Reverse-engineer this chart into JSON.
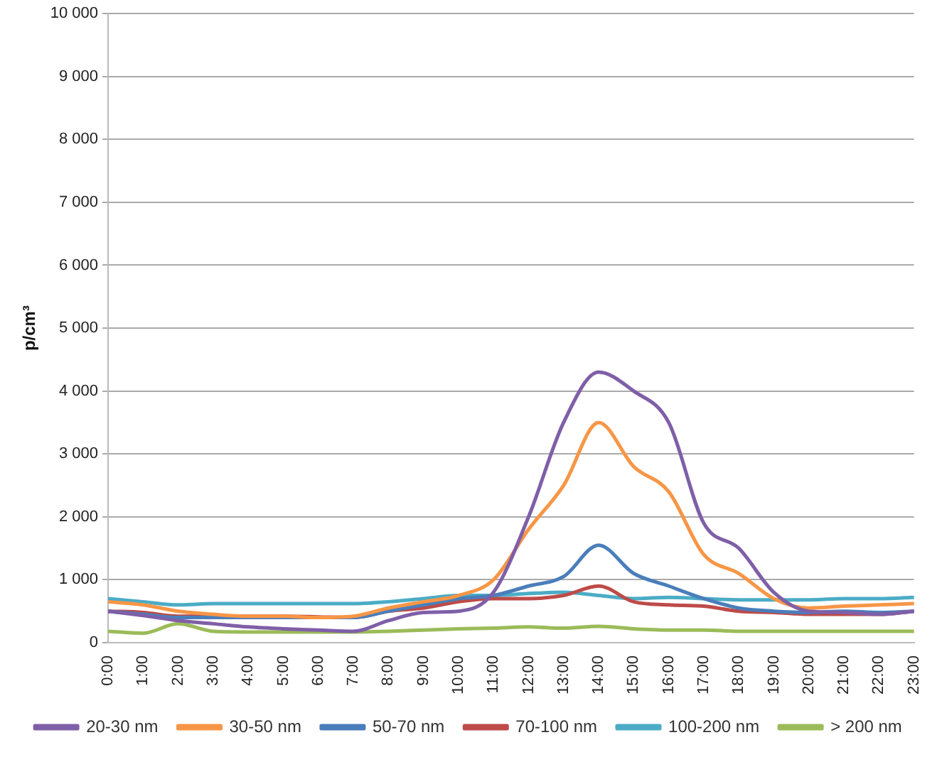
{
  "chart_data": {
    "type": "line",
    "ylabel": "p/cm³",
    "categories": [
      "0:00",
      "1:00",
      "2:00",
      "3:00",
      "4:00",
      "5:00",
      "6:00",
      "7:00",
      "8:00",
      "9:00",
      "10:00",
      "11:00",
      "12:00",
      "13:00",
      "14:00",
      "15:00",
      "16:00",
      "17:00",
      "18:00",
      "19:00",
      "20:00",
      "21:00",
      "22:00",
      "23:00"
    ],
    "series": [
      {
        "name": "20-30 nm",
        "color": "#7f5fa8",
        "values": [
          500,
          430,
          350,
          300,
          250,
          220,
          200,
          180,
          350,
          480,
          500,
          800,
          2000,
          3500,
          4300,
          4000,
          3500,
          1900,
          1500,
          800,
          500,
          480,
          450,
          500
        ]
      },
      {
        "name": "30-50 nm",
        "color": "#f79646",
        "values": [
          650,
          600,
          500,
          450,
          420,
          420,
          400,
          420,
          550,
          650,
          750,
          1000,
          1800,
          2500,
          3500,
          2800,
          2400,
          1400,
          1100,
          700,
          550,
          580,
          600,
          620
        ]
      },
      {
        "name": "50-70 nm",
        "color": "#4a7ebb",
        "values": [
          500,
          450,
          400,
          400,
          400,
          400,
          400,
          400,
          500,
          600,
          700,
          750,
          900,
          1050,
          1550,
          1100,
          900,
          700,
          550,
          500,
          480,
          500,
          480,
          500
        ]
      },
      {
        "name": "70-100 nm",
        "color": "#be4b48",
        "values": [
          500,
          480,
          420,
          420,
          420,
          420,
          410,
          400,
          500,
          550,
          650,
          700,
          700,
          750,
          900,
          650,
          600,
          580,
          500,
          480,
          450,
          450,
          450,
          500
        ]
      },
      {
        "name": "100-200 nm",
        "color": "#4bacc6",
        "values": [
          700,
          650,
          600,
          620,
          620,
          620,
          620,
          620,
          650,
          700,
          750,
          750,
          780,
          800,
          750,
          700,
          720,
          700,
          680,
          680,
          680,
          700,
          700,
          720
        ]
      },
      {
        "name": "> 200 nm",
        "color": "#9bbb59",
        "values": [
          180,
          150,
          300,
          180,
          170,
          170,
          170,
          170,
          180,
          200,
          220,
          230,
          250,
          230,
          260,
          220,
          200,
          200,
          180,
          180,
          180,
          180,
          180,
          180
        ]
      }
    ],
    "ylim": [
      0,
      10000
    ],
    "yticks": [
      0,
      {
        "value": 1000,
        "label": "1 000"
      },
      {
        "value": 2000,
        "label": "2 000"
      },
      {
        "value": 3000,
        "label": "3 000"
      },
      {
        "value": 4000,
        "label": "4 000"
      },
      {
        "value": 5000,
        "label": "5 000"
      },
      {
        "value": 6000,
        "label": "6 000"
      },
      {
        "value": 7000,
        "label": "7 000"
      },
      {
        "value": 8000,
        "label": "8 000"
      },
      {
        "value": 9000,
        "label": "9 000"
      },
      {
        "value": 10000,
        "label": "10 000"
      }
    ],
    "grid": "y",
    "legend": "bottom",
    "marker": "none",
    "line_style": "solid"
  }
}
